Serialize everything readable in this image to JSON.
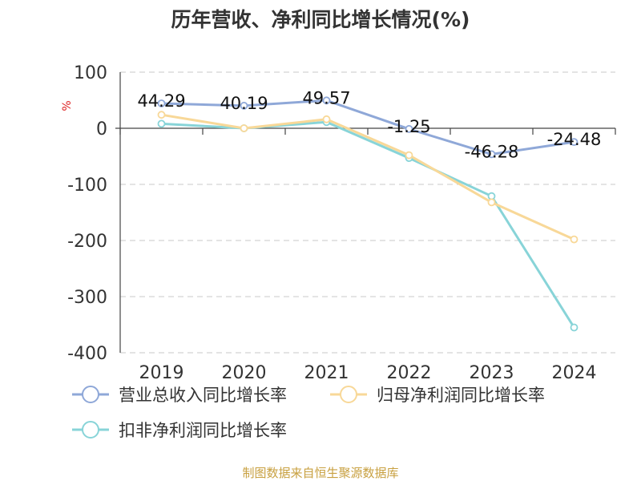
{
  "chart_data": {
    "type": "line",
    "title": "历年营收、净利同比增长情况(%)",
    "ylabel": "%",
    "categories": [
      "2019",
      "2020",
      "2021",
      "2022",
      "2023",
      "2024"
    ],
    "ylim": [
      -400,
      100
    ],
    "yticks": [
      100,
      0,
      -100,
      -200,
      -300,
      -400
    ],
    "grid": true,
    "legend_position": "bottom",
    "series": [
      {
        "name": "营业总收入同比增长率",
        "color": "#8fa8d8",
        "values": [
          44.29,
          40.19,
          49.57,
          -1.25,
          -46.28,
          -24.48
        ],
        "labels": [
          "44.29",
          "40.19",
          "49.57",
          "-1.25",
          "-46.28",
          "-24.48"
        ]
      },
      {
        "name": "归母净利润同比增长率",
        "color": "#f8d898",
        "values": [
          24,
          0,
          16,
          -48,
          -132,
          -198
        ]
      },
      {
        "name": "扣非净利润同比增长率",
        "color": "#88d4d8",
        "values": [
          8,
          0,
          11,
          -53,
          -121,
          -355
        ]
      }
    ]
  },
  "source": "制图数据来自恒生聚源数据库"
}
